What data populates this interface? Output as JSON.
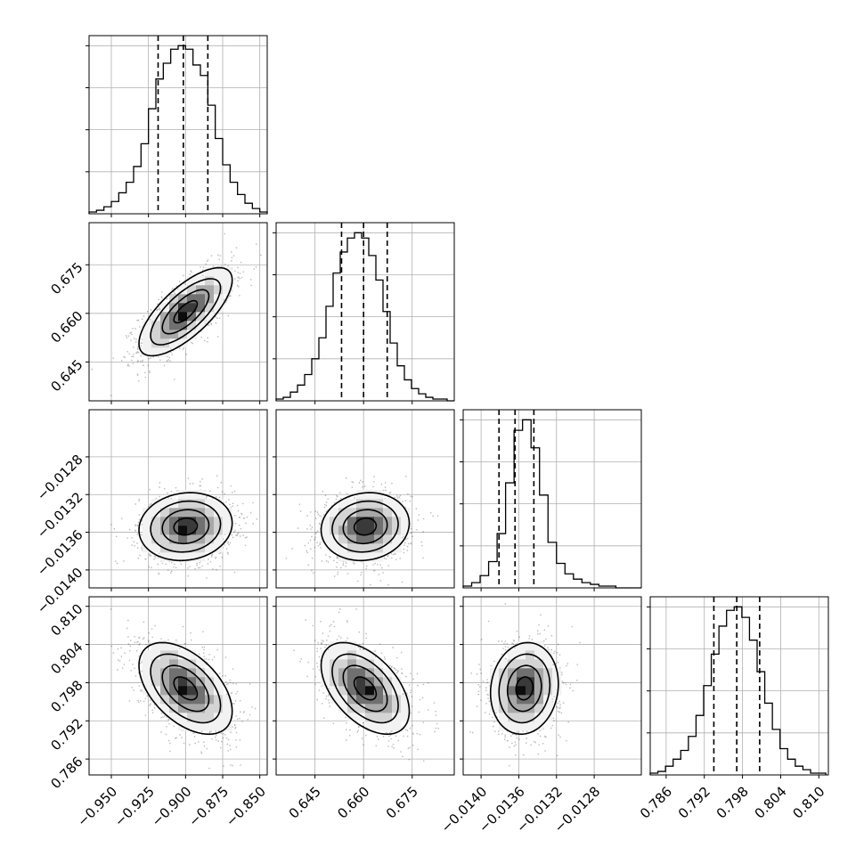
{
  "chart_data": {
    "type": "corner",
    "params": [
      {
        "range": [
          -0.965,
          -0.845
        ],
        "ticks": [
          -0.95,
          -0.925,
          -0.9,
          -0.875,
          -0.85
        ],
        "tick_labels": [
          "−0.950",
          "−0.925",
          "−0.900",
          "−0.875",
          "−0.850"
        ],
        "quantiles": [
          -0.9185,
          -0.9015,
          -0.885
        ],
        "hist": {
          "edges": [
            -0.965,
            -0.96,
            -0.955,
            -0.95,
            -0.945,
            -0.94,
            -0.935,
            -0.93,
            -0.925,
            -0.92,
            -0.915,
            -0.91,
            -0.905,
            -0.9,
            -0.895,
            -0.89,
            -0.885,
            -0.88,
            -0.875,
            -0.87,
            -0.865,
            -0.86,
            -0.855,
            -0.85,
            -0.845
          ],
          "counts": [
            1,
            2,
            4,
            7,
            12,
            18,
            27,
            40,
            60,
            77,
            86,
            94,
            96,
            94,
            85,
            79,
            62,
            43,
            28,
            18,
            11,
            6,
            3,
            1
          ]
        }
      },
      {
        "range": [
          0.633,
          0.688
        ],
        "ticks": [
          0.645,
          0.66,
          0.675
        ],
        "tick_labels": [
          "0.645",
          "0.660",
          "0.675"
        ],
        "quantiles": [
          0.6532,
          0.66,
          0.6673
        ],
        "hist": {
          "edges": [
            0.633,
            0.6352,
            0.6374,
            0.6396,
            0.6418,
            0.644,
            0.6462,
            0.6484,
            0.6506,
            0.6528,
            0.655,
            0.6572,
            0.6594,
            0.6616,
            0.6638,
            0.666,
            0.6682,
            0.6704,
            0.6726,
            0.6748,
            0.677,
            0.6792,
            0.6814,
            0.6836,
            0.6858,
            0.688
          ],
          "counts": [
            1,
            2,
            5,
            9,
            15,
            24,
            36,
            54,
            73,
            85,
            93,
            96,
            93,
            83,
            69,
            51,
            33,
            20,
            12,
            7,
            4,
            2,
            1,
            1,
            0
          ]
        }
      },
      {
        "range": [
          -0.01419,
          -0.0123
        ],
        "ticks": [
          -0.014,
          -0.0136,
          -0.0132,
          -0.0128
        ],
        "tick_labels": [
          "−0.0140",
          "−0.0136",
          "−0.0132",
          "−0.0128"
        ],
        "quantiles": [
          -0.01381,
          -0.01364,
          -0.01344
        ],
        "hist": {
          "edges": [
            -0.01419,
            -0.0141,
            -0.01401,
            -0.01392,
            -0.01383,
            -0.01374,
            -0.01365,
            -0.01356,
            -0.01347,
            -0.01338,
            -0.01329,
            -0.0132,
            -0.01311,
            -0.01302,
            -0.01293,
            -0.01284,
            -0.01275,
            -0.01266,
            -0.01257,
            -0.01248,
            -0.01239,
            -0.0123
          ],
          "counts": [
            1,
            3,
            7,
            15,
            31,
            60,
            90,
            96,
            80,
            53,
            26,
            14,
            8,
            5,
            3,
            2,
            1,
            1,
            0,
            0,
            0
          ]
        }
      },
      {
        "range": [
          0.7835,
          0.8115
        ],
        "ticks": [
          0.786,
          0.792,
          0.798,
          0.804,
          0.81
        ],
        "tick_labels": [
          "0.786",
          "0.792",
          "0.798",
          "0.804",
          "0.810"
        ],
        "quantiles": [
          0.7935,
          0.7971,
          0.8007
        ],
        "hist": {
          "edges": [
            0.7835,
            0.7847,
            0.7859,
            0.7871,
            0.7883,
            0.7895,
            0.7907,
            0.7919,
            0.7931,
            0.7943,
            0.7955,
            0.7967,
            0.7979,
            0.7991,
            0.8003,
            0.8015,
            0.8027,
            0.8039,
            0.8051,
            0.8063,
            0.8075,
            0.8087,
            0.8099,
            0.8111
          ],
          "counts": [
            1,
            2,
            5,
            9,
            14,
            22,
            34,
            51,
            69,
            85,
            94,
            96,
            90,
            77,
            59,
            41,
            26,
            15,
            9,
            5,
            3,
            1,
            1
          ]
        }
      }
    ],
    "pairs": [
      {
        "x": 0,
        "y": 1,
        "center": [
          -0.9,
          0.6605
        ],
        "sd": [
          0.0157,
          0.0068
        ],
        "corr": 0.72
      },
      {
        "x": 0,
        "y": 2,
        "center": [
          -0.9,
          -0.01354
        ],
        "sd": [
          0.0157,
          0.00018
        ],
        "corr": 0.1
      },
      {
        "x": 1,
        "y": 2,
        "center": [
          0.6605,
          -0.01354
        ],
        "sd": [
          0.0068,
          0.00018
        ],
        "corr": 0.1
      },
      {
        "x": 0,
        "y": 3,
        "center": [
          -0.9,
          0.7971
        ],
        "sd": [
          0.0157,
          0.0036
        ],
        "corr": -0.5
      },
      {
        "x": 1,
        "y": 3,
        "center": [
          0.6605,
          0.7971
        ],
        "sd": [
          0.0068,
          0.0036
        ],
        "corr": -0.5
      },
      {
        "x": 2,
        "y": 3,
        "center": [
          -0.01354,
          0.7971
        ],
        "sd": [
          0.00018,
          0.0036
        ],
        "corr": 0.1
      }
    ],
    "contour_levels_sigma": [
      0.5,
      1.0,
      1.5,
      2.0
    ],
    "grid": true,
    "colors": {
      "line": "#000000",
      "grid": "#b0b0b0",
      "points": "#000000"
    }
  }
}
